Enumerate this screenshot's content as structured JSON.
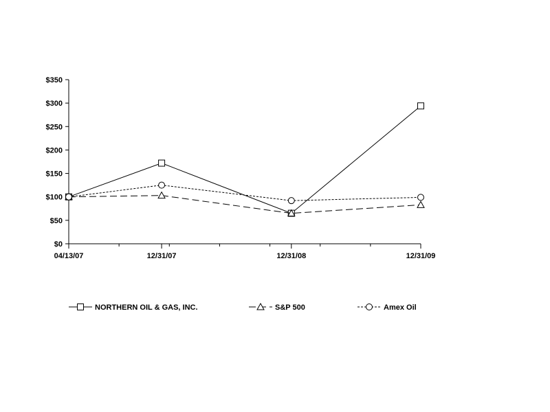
{
  "chart_data": {
    "type": "line",
    "title": "",
    "xlabel": "",
    "ylabel": "",
    "x": [
      "04/13/07",
      "12/31/07",
      "12/31/08",
      "12/31/09"
    ],
    "x_days": [
      0,
      262,
      628,
      993
    ],
    "ylim": [
      0,
      350
    ],
    "ytick_values": [
      0,
      50,
      100,
      150,
      200,
      250,
      300,
      350
    ],
    "ytick_labels": [
      "$0",
      "$50",
      "$100",
      "$150",
      "$200",
      "$250",
      "$300",
      "$350"
    ],
    "grid": false,
    "legend_position": "bottom",
    "series": [
      {
        "name": "NORTHERN OIL & GAS, INC.",
        "values": [
          100,
          172,
          65,
          294
        ],
        "marker": "square",
        "dash": "solid",
        "color": "#000000"
      },
      {
        "name": "S&P 500",
        "values": [
          100,
          103,
          65,
          83
        ],
        "marker": "triangle",
        "dash": "dashed",
        "color": "#000000"
      },
      {
        "name": "Amex Oil",
        "values": [
          100,
          125,
          92,
          99
        ],
        "marker": "circle",
        "dash": "dotted",
        "color": "#000000"
      }
    ]
  }
}
